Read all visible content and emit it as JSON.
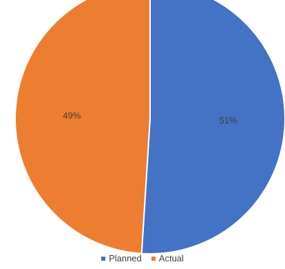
{
  "chart_data": {
    "type": "pie",
    "title": "",
    "slices": [
      {
        "name": "Planned",
        "value": 51,
        "label": "51%",
        "color": "#4472C4"
      },
      {
        "name": "Actual",
        "value": 49,
        "label": "49%",
        "color": "#ED7D31"
      }
    ],
    "legend_position": "bottom",
    "start_angle_deg": 0,
    "direction": "clockwise"
  },
  "legend": {
    "items": [
      {
        "label": "Planned",
        "color": "#4472C4"
      },
      {
        "label": "Actual",
        "color": "#ED7D31"
      }
    ]
  }
}
